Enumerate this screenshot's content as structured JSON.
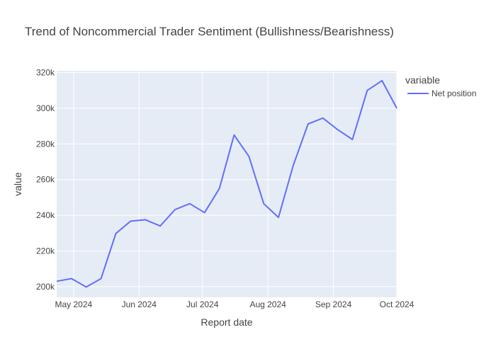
{
  "chart_data": {
    "type": "line",
    "title": "Trend of Noncommercial Trader Sentiment (Bullishness/Bearishness)",
    "xlabel": "Report date",
    "ylabel": "value",
    "legend_title": "variable",
    "legend_position": "top-right",
    "grid": true,
    "colors": {
      "plot_bg": "#E5ECF6",
      "grid": "#ffffff",
      "series": "#636EFA"
    },
    "xlim": [
      "2024-04-23",
      "2024-10-01"
    ],
    "ylim": [
      194000,
      321000
    ],
    "x_ticks": [
      {
        "date": "2024-05-01",
        "label": "May 2024"
      },
      {
        "date": "2024-06-01",
        "label": "Jun 2024"
      },
      {
        "date": "2024-07-01",
        "label": "Jul 2024"
      },
      {
        "date": "2024-08-01",
        "label": "Aug 2024"
      },
      {
        "date": "2024-09-01",
        "label": "Sep 2024"
      },
      {
        "date": "2024-10-01",
        "label": "Oct 2024"
      }
    ],
    "y_ticks": [
      {
        "value": 200000,
        "label": "200k"
      },
      {
        "value": 220000,
        "label": "220k"
      },
      {
        "value": 240000,
        "label": "240k"
      },
      {
        "value": 260000,
        "label": "260k"
      },
      {
        "value": 280000,
        "label": "280k"
      },
      {
        "value": 300000,
        "label": "300k"
      },
      {
        "value": 320000,
        "label": "320k"
      }
    ],
    "series": [
      {
        "name": "Net position",
        "x": [
          "2024-04-23",
          "2024-04-30",
          "2024-05-07",
          "2024-05-14",
          "2024-05-21",
          "2024-05-28",
          "2024-06-04",
          "2024-06-11",
          "2024-06-18",
          "2024-06-25",
          "2024-07-02",
          "2024-07-09",
          "2024-07-16",
          "2024-07-23",
          "2024-07-30",
          "2024-08-06",
          "2024-08-13",
          "2024-08-20",
          "2024-08-27",
          "2024-09-03",
          "2024-09-10",
          "2024-09-17",
          "2024-09-24",
          "2024-10-01"
        ],
        "y": [
          203000,
          204500,
          199800,
          204500,
          229800,
          236700,
          237500,
          234000,
          243200,
          246500,
          241500,
          255000,
          285000,
          273000,
          246500,
          238800,
          268000,
          291200,
          294500,
          288000,
          282500,
          310000,
          315500,
          300000
        ]
      }
    ]
  }
}
